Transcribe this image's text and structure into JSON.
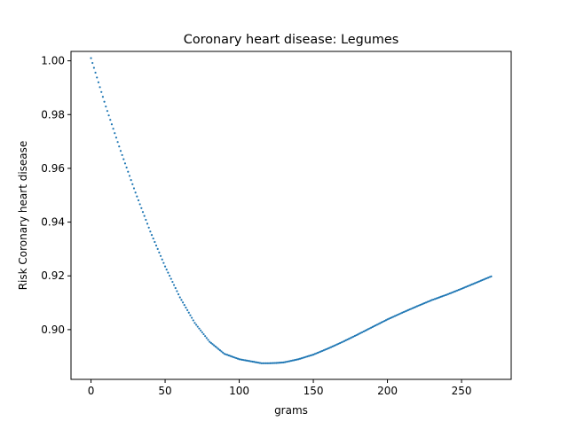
{
  "chart_data": {
    "type": "scatter",
    "title": "Coronary heart disease: Legumes",
    "xlabel": "grams",
    "ylabel": "Risk Coronary heart disease",
    "xlim": [
      -13.5,
      283.5
    ],
    "ylim": [
      0.8815,
      1.0035
    ],
    "xticks": [
      0,
      50,
      100,
      150,
      200,
      250
    ],
    "xtick_labels": [
      "0",
      "50",
      "100",
      "150",
      "200",
      "250"
    ],
    "yticks": [
      0.9,
      0.92,
      0.94,
      0.96,
      0.98,
      1.0
    ],
    "ytick_labels": [
      "0.90",
      "0.92",
      "0.94",
      "0.96",
      "0.98",
      "1.00"
    ],
    "grid": false,
    "series": [
      {
        "color": "#1f77b4",
        "x": [
          0,
          10,
          20,
          30,
          40,
          50,
          60,
          70,
          80,
          90,
          100,
          110,
          115,
          120,
          125,
          130,
          140,
          150,
          160,
          170,
          180,
          190,
          200,
          210,
          220,
          230,
          240,
          250,
          260,
          270
        ],
        "y": [
          1.001,
          0.983,
          0.9665,
          0.951,
          0.9365,
          0.9235,
          0.912,
          0.9025,
          0.8955,
          0.891,
          0.889,
          0.888,
          0.8875,
          0.8875,
          0.8876,
          0.8878,
          0.889,
          0.8907,
          0.893,
          0.8955,
          0.8982,
          0.901,
          0.9038,
          0.9063,
          0.9087,
          0.911,
          0.913,
          0.9152,
          0.9175,
          0.9198
        ]
      }
    ]
  }
}
